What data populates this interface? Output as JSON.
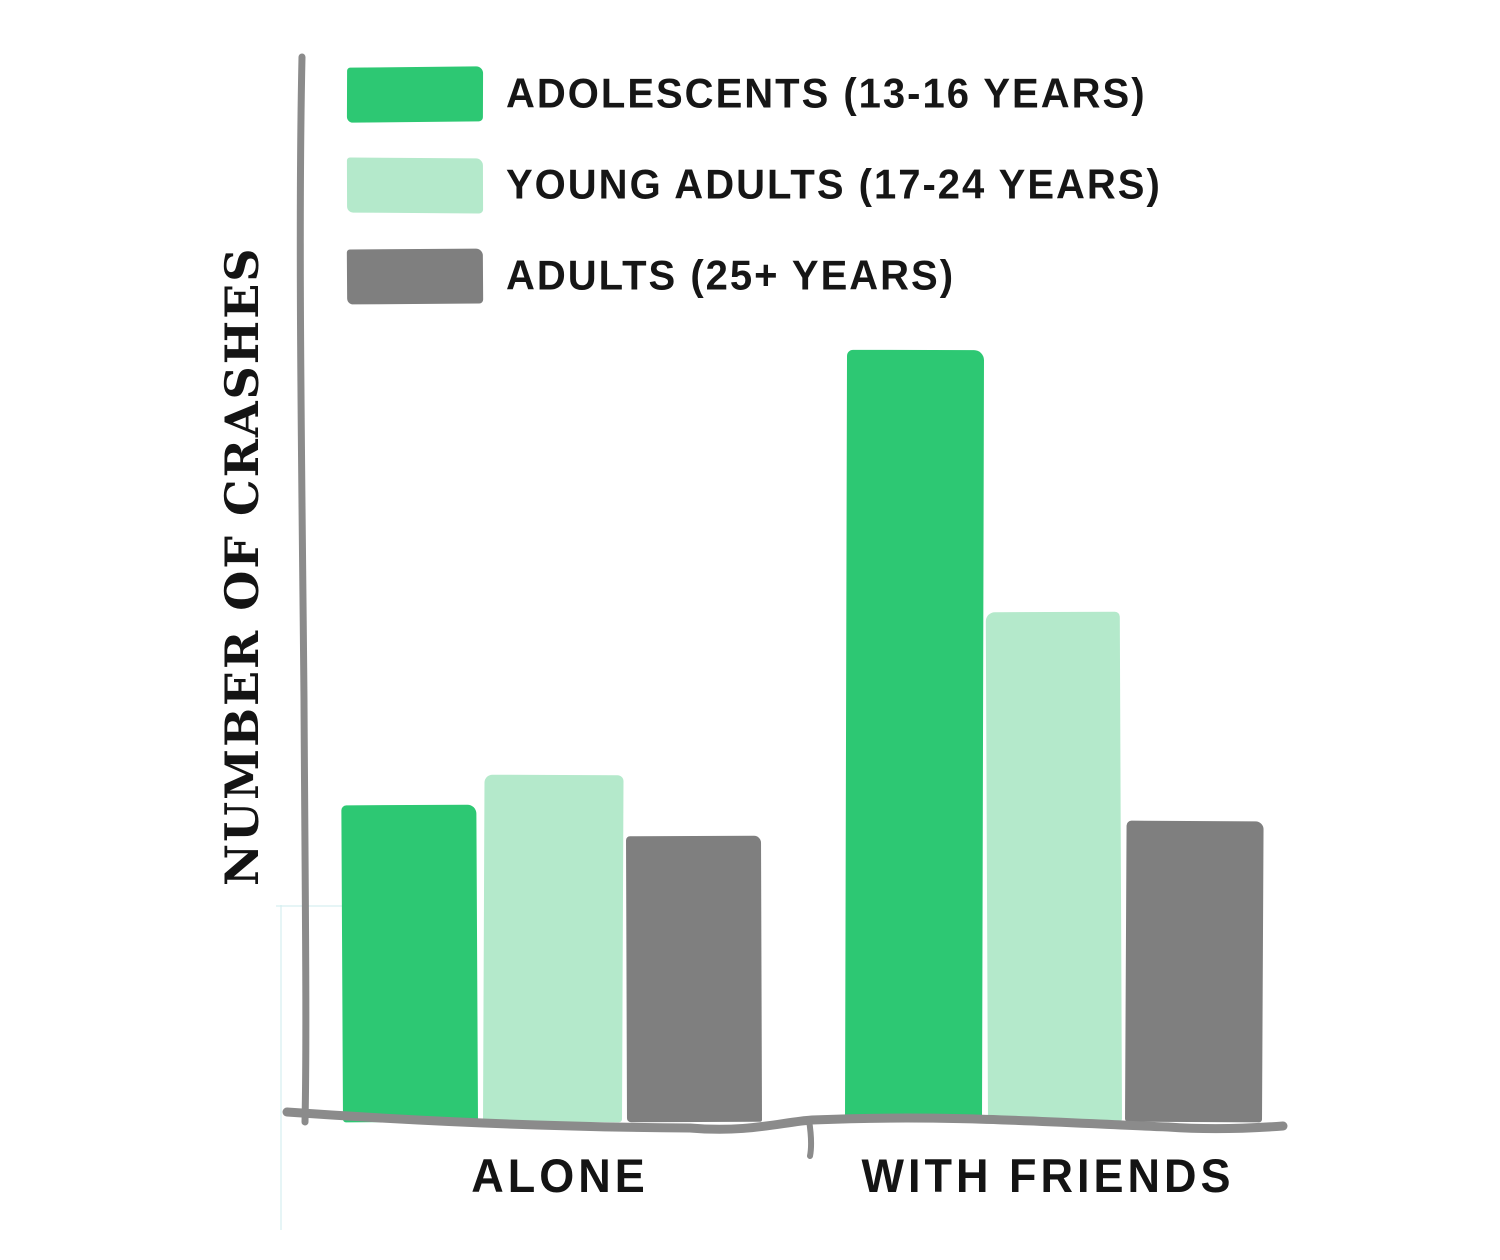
{
  "chart_data": {
    "type": "bar",
    "title": "",
    "categories": [
      "ALONE",
      "WITH FRIENDS"
    ],
    "series": [
      {
        "name": "ADOLESCENTS (13-16 YEARS)",
        "color": "#2dc873",
        "values": [
          41,
          100
        ]
      },
      {
        "name": "YOUNG ADULTS (17-24 YEARS)",
        "color": "#b4e9cb",
        "values": [
          45,
          66
        ]
      },
      {
        "name": "ADULTS (25+ YEARS)",
        "color": "#7f7f7f",
        "values": [
          37,
          39
        ]
      }
    ],
    "xlabel": "",
    "ylabel": "NUMBER OF CRASHES",
    "value_axis_ticks_shown": false,
    "values_are_relative_estimates": true,
    "value_scale_note": "tallest bar = 100; no numeric axis labels shown",
    "grid": false,
    "legend_position": "top-left",
    "style": "hand-drawn marker sketch"
  },
  "colors": {
    "background": "#ffffff",
    "axis": "#8b8b8b",
    "text": "#151515",
    "adolescents_green": "#2dc873",
    "young_adults_light_green": "#b4e9cb",
    "adults_gray": "#7f7f7f"
  }
}
